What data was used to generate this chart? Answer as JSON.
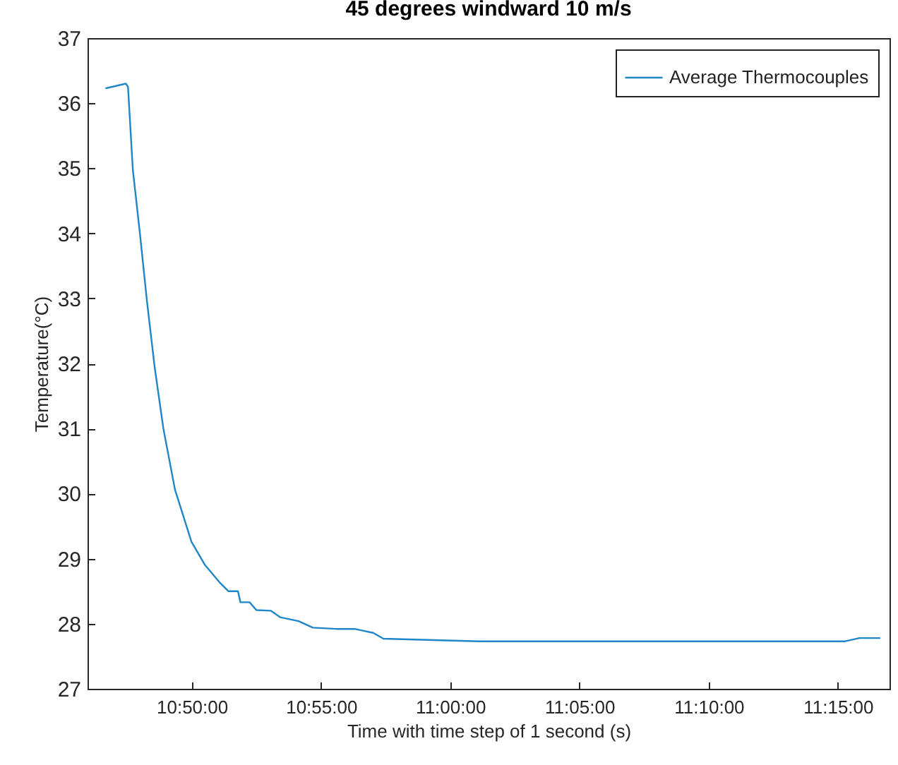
{
  "chart_data": {
    "type": "line",
    "title": "45 degrees windward 10 m/s",
    "xlabel": "Time with time step of 1 second (s)",
    "ylabel": "Temperature(°C)",
    "x": [
      10.7781,
      10.7908,
      10.7922,
      10.7953,
      10.8,
      10.8044,
      10.8094,
      10.815,
      10.8225,
      10.8331,
      10.8419,
      10.8511,
      10.8569,
      10.8631,
      10.8647,
      10.8706,
      10.875,
      10.8842,
      10.8903,
      10.9022,
      10.9114,
      10.9264,
      10.9383,
      10.9503,
      10.9569,
      11.0183,
      11.2547,
      11.2639,
      11.2769
    ],
    "series": [
      {
        "name": "Average Thermocouples",
        "color": "#1f86c8",
        "values": [
          36.23,
          36.3,
          36.25,
          34.98,
          33.97,
          32.96,
          31.94,
          31.0,
          30.06,
          29.26,
          28.9,
          28.64,
          28.5,
          28.5,
          28.33,
          28.33,
          28.21,
          28.2,
          28.1,
          28.04,
          27.94,
          27.92,
          27.92,
          27.86,
          27.77,
          27.73,
          27.73,
          27.78,
          27.78
        ]
      }
    ],
    "xlim": [
      10.7661,
      11.2833
    ],
    "xticks": [
      {
        "value": 10.8333,
        "label": "10:50:00"
      },
      {
        "value": 10.9167,
        "label": "10:55:00"
      },
      {
        "value": 11,
        "label": "11:00:00"
      },
      {
        "value": 11.0833,
        "label": "11:05:00"
      },
      {
        "value": 11.1667,
        "label": "11:10:00"
      },
      {
        "value": 11.25,
        "label": "11:15:00"
      }
    ],
    "ylim": [
      27,
      37
    ],
    "yticks": [
      27,
      28,
      29,
      30,
      31,
      32,
      33,
      34,
      35,
      36,
      37
    ],
    "legend": "top right",
    "line_style": "solid",
    "marker": "none"
  }
}
